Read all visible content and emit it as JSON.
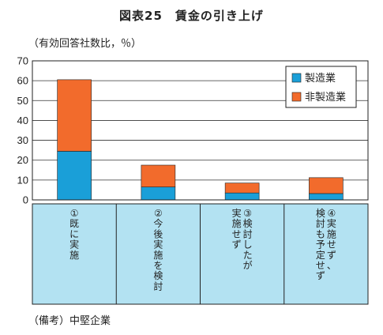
{
  "chart_data": {
    "type": "bar",
    "stacked": true,
    "title": "図表25　賃金の引き上げ",
    "unit_label": "（有効回答社数比，％）",
    "note": "（備考）中堅企業",
    "categories": [
      [
        "①",
        "既",
        "に",
        "実",
        "施"
      ],
      [
        "②",
        "今",
        "後",
        "実",
        "施",
        "を",
        "検",
        "討"
      ],
      [
        "③",
        "検",
        "討",
        "し",
        "た",
        "が",
        "実",
        "施",
        "せ",
        "ず"
      ],
      [
        "④",
        "実",
        "施",
        "せ",
        "ず",
        "、",
        "検",
        "討",
        "も",
        "予",
        "定",
        "せ",
        "ず"
      ]
    ],
    "series": [
      {
        "name": "製造業",
        "color": "#1a9fd8",
        "values": [
          24.5,
          6.5,
          3.5,
          3.2
        ]
      },
      {
        "name": "非製造業",
        "color": "#f26b2c",
        "values": [
          36,
          11,
          5,
          8
        ]
      }
    ],
    "ylim": [
      0,
      70
    ],
    "yticks": [
      "0",
      "10",
      "20",
      "30",
      "40",
      "50",
      "60",
      "70"
    ],
    "grid": true,
    "legend_position": "top-right",
    "category_panel_color": "#b3e2f2"
  }
}
